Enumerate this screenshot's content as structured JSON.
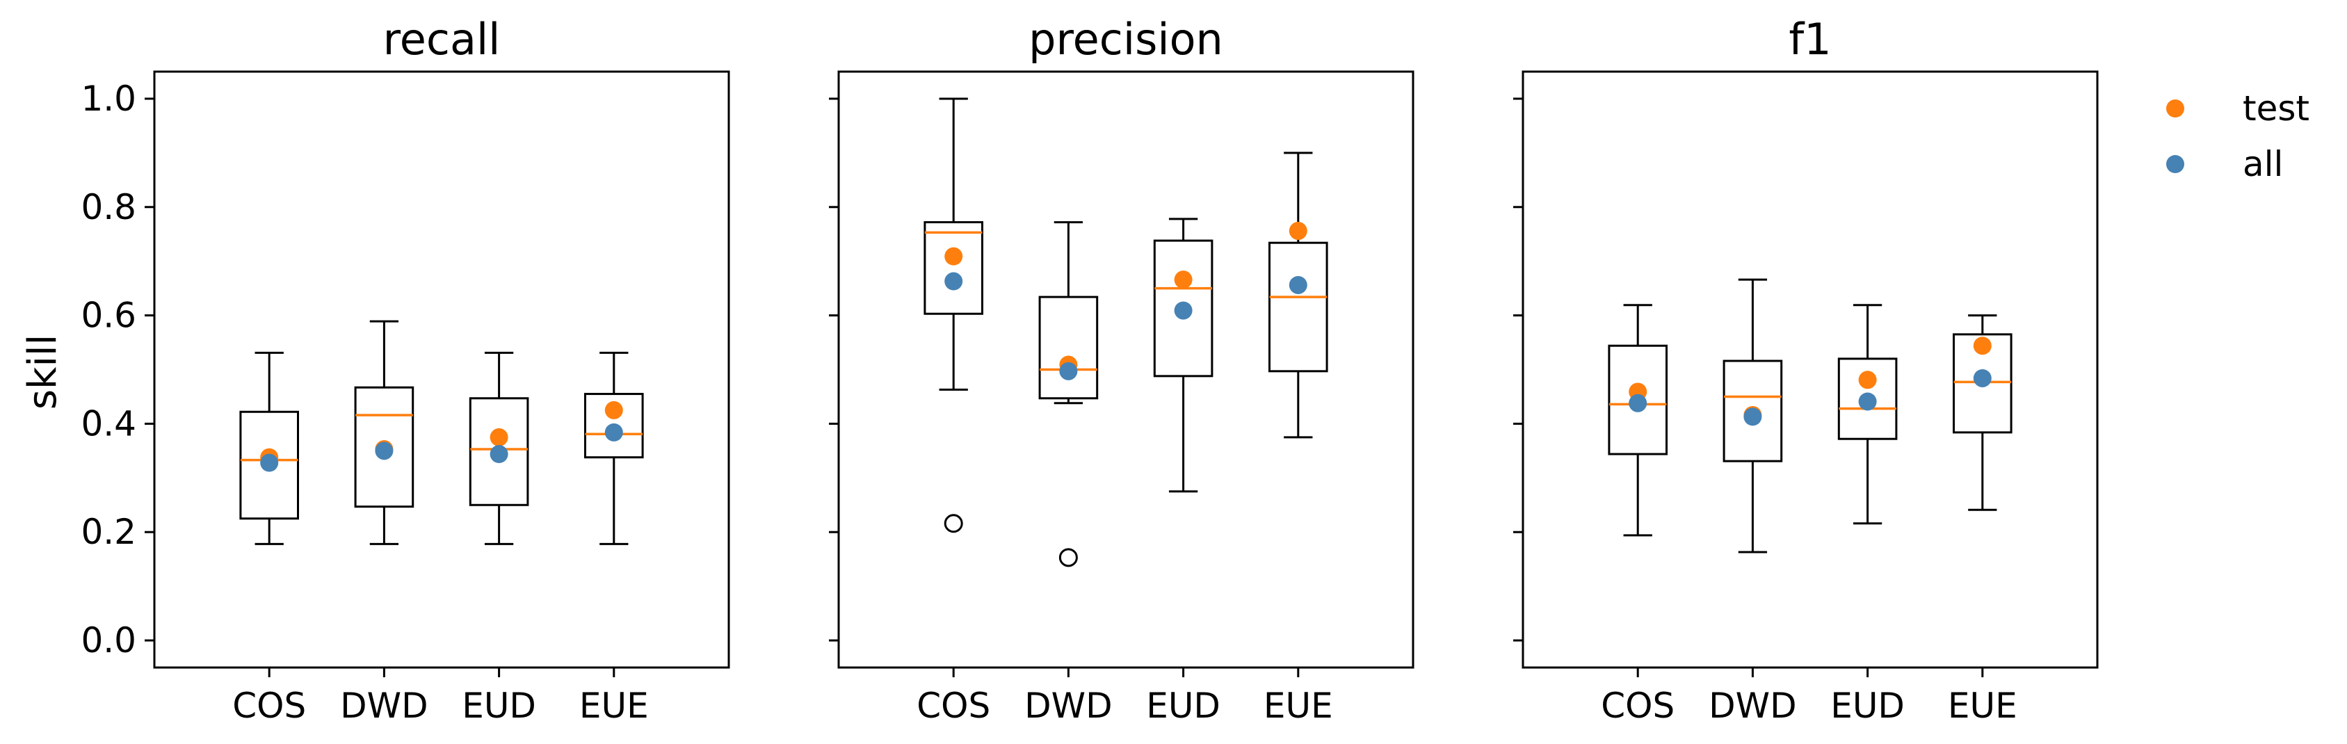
{
  "chart_data": {
    "type": "box",
    "ylabel": "skill",
    "ylim": [
      -0.05,
      1.05
    ],
    "yticks": [
      "0.0",
      "0.2",
      "0.4",
      "0.6",
      "0.8",
      "1.0"
    ],
    "categories": [
      "COS",
      "DWD",
      "EUD",
      "EUE"
    ],
    "colors": {
      "test": "#ff7f0e",
      "all": "#4682b4",
      "median": "#ff7f0e",
      "box": "#000000"
    },
    "legend": {
      "position": "right",
      "entries": [
        {
          "key": "test",
          "label": "test"
        },
        {
          "key": "all",
          "label": "all"
        }
      ]
    },
    "panels": [
      {
        "title": "recall",
        "boxes": [
          {
            "q1": 0.225,
            "median": 0.333,
            "q3": 0.422,
            "whisker_low": 0.178,
            "whisker_high": 0.531,
            "fliers": []
          },
          {
            "q1": 0.247,
            "median": 0.416,
            "q3": 0.467,
            "whisker_low": 0.178,
            "whisker_high": 0.589,
            "fliers": []
          },
          {
            "q1": 0.25,
            "median": 0.353,
            "q3": 0.447,
            "whisker_low": 0.178,
            "whisker_high": 0.531,
            "fliers": []
          },
          {
            "q1": 0.338,
            "median": 0.381,
            "q3": 0.455,
            "whisker_low": 0.178,
            "whisker_high": 0.531,
            "fliers": []
          }
        ],
        "test": [
          0.338,
          0.353,
          0.375,
          0.425
        ],
        "all": [
          0.328,
          0.35,
          0.344,
          0.384
        ]
      },
      {
        "title": "precision",
        "boxes": [
          {
            "q1": 0.603,
            "median": 0.753,
            "q3": 0.772,
            "whisker_low": 0.463,
            "whisker_high": 1.0,
            "fliers": [
              0.216
            ]
          },
          {
            "q1": 0.447,
            "median": 0.5,
            "q3": 0.634,
            "whisker_low": 0.438,
            "whisker_high": 0.772,
            "fliers": [
              0.153
            ]
          },
          {
            "q1": 0.488,
            "median": 0.65,
            "q3": 0.738,
            "whisker_low": 0.275,
            "whisker_high": 0.778,
            "fliers": []
          },
          {
            "q1": 0.497,
            "median": 0.634,
            "q3": 0.734,
            "whisker_low": 0.375,
            "whisker_high": 0.9,
            "fliers": []
          }
        ],
        "test": [
          0.709,
          0.509,
          0.666,
          0.756
        ],
        "all": [
          0.663,
          0.497,
          0.609,
          0.656
        ]
      },
      {
        "title": "f1",
        "boxes": [
          {
            "q1": 0.344,
            "median": 0.436,
            "q3": 0.544,
            "whisker_low": 0.194,
            "whisker_high": 0.619,
            "fliers": []
          },
          {
            "q1": 0.331,
            "median": 0.45,
            "q3": 0.516,
            "whisker_low": 0.163,
            "whisker_high": 0.666,
            "fliers": []
          },
          {
            "q1": 0.372,
            "median": 0.428,
            "q3": 0.52,
            "whisker_low": 0.216,
            "whisker_high": 0.619,
            "fliers": []
          },
          {
            "q1": 0.384,
            "median": 0.477,
            "q3": 0.565,
            "whisker_low": 0.241,
            "whisker_high": 0.6,
            "fliers": []
          }
        ],
        "test": [
          0.459,
          0.416,
          0.481,
          0.544
        ],
        "all": [
          0.438,
          0.413,
          0.441,
          0.484
        ]
      }
    ]
  }
}
